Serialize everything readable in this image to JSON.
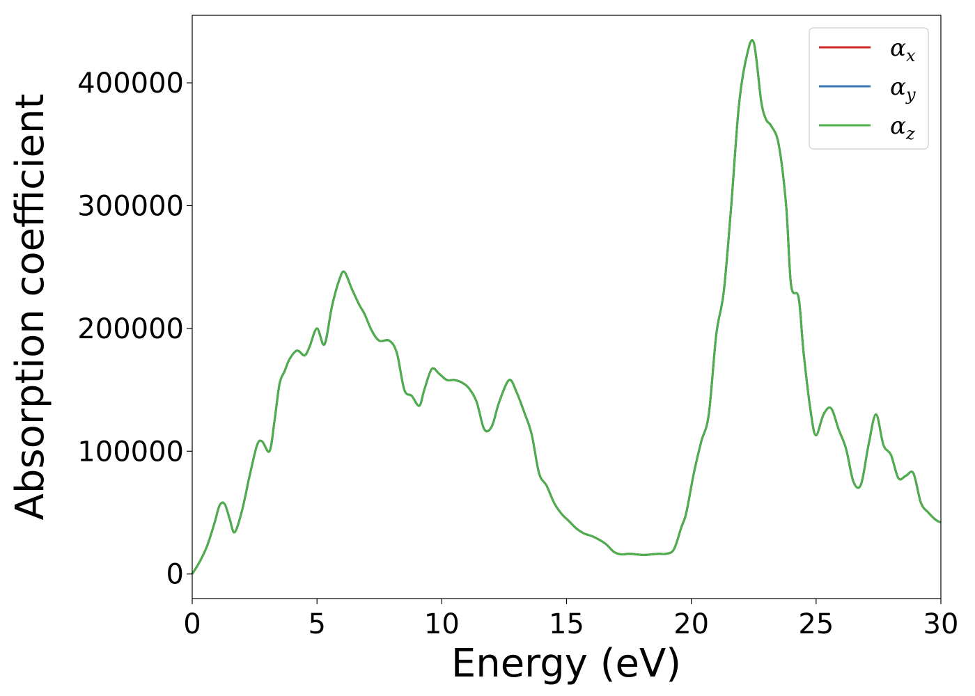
{
  "chart_data": {
    "type": "line",
    "xlabel": "Energy (eV)",
    "ylabel": "Absorption coefficient",
    "xlim": [
      0,
      30
    ],
    "ylim": [
      -20000,
      455000
    ],
    "xticks": [
      0,
      5,
      10,
      15,
      20,
      25,
      30
    ],
    "yticks": [
      0,
      100000,
      200000,
      300000,
      400000
    ],
    "grid": false,
    "legend_position": "upper right",
    "legend": [
      {
        "symbol": "α",
        "subscript": "x",
        "color": "#d62728"
      },
      {
        "symbol": "α",
        "subscript": "y",
        "color": "#3a78b5"
      },
      {
        "symbol": "α",
        "subscript": "z",
        "color": "#4daf4a"
      }
    ],
    "x": [
      0,
      0.3,
      0.6,
      0.9,
      1.1,
      1.3,
      1.5,
      1.7,
      2.0,
      2.3,
      2.6,
      2.8,
      3.1,
      3.3,
      3.5,
      3.7,
      3.9,
      4.2,
      4.5,
      4.7,
      5.0,
      5.3,
      5.6,
      5.9,
      6.1,
      6.4,
      6.7,
      6.9,
      7.2,
      7.5,
      7.9,
      8.2,
      8.5,
      8.8,
      9.1,
      9.3,
      9.6,
      9.9,
      10.2,
      10.5,
      10.8,
      11.1,
      11.4,
      11.7,
      12.0,
      12.3,
      12.7,
      13.0,
      13.3,
      13.6,
      13.9,
      14.2,
      14.5,
      14.8,
      15.1,
      15.4,
      15.7,
      16.0,
      16.3,
      16.6,
      16.9,
      17.2,
      17.5,
      17.8,
      18.1,
      18.4,
      18.7,
      19.0,
      19.3,
      19.6,
      19.8,
      20.1,
      20.4,
      20.7,
      21.0,
      21.3,
      21.6,
      21.9,
      22.2,
      22.5,
      22.8,
      23.0,
      23.2,
      23.5,
      23.8,
      24.0,
      24.3,
      24.5,
      24.8,
      25.0,
      25.3,
      25.6,
      25.9,
      26.2,
      26.5,
      26.8,
      27.1,
      27.4,
      27.7,
      28.0,
      28.3,
      28.6,
      28.9,
      29.2,
      29.5,
      29.8,
      30.0
    ],
    "series": [
      {
        "name": "α_x",
        "color": "#d62728",
        "values": [
          0,
          10000,
          23000,
          42000,
          56000,
          57000,
          45000,
          34000,
          52000,
          80000,
          105000,
          108000,
          100000,
          125000,
          155000,
          165000,
          175000,
          182000,
          178000,
          185000,
          200000,
          187000,
          218000,
          240000,
          246000,
          232000,
          219000,
          212000,
          198000,
          190000,
          190000,
          180000,
          150000,
          145000,
          137000,
          150000,
          167000,
          163000,
          158000,
          158000,
          156000,
          151000,
          140000,
          118000,
          120000,
          140000,
          158000,
          148000,
          132000,
          114000,
          82000,
          72000,
          58000,
          49000,
          43000,
          37000,
          33000,
          31000,
          28000,
          24000,
          18000,
          16000,
          16500,
          16000,
          15500,
          16000,
          16500,
          16500,
          20000,
          38000,
          50000,
          82000,
          108000,
          130000,
          195000,
          230000,
          300000,
          380000,
          420000,
          433000,
          385000,
          370000,
          365000,
          350000,
          300000,
          235000,
          225000,
          180000,
          130000,
          113000,
          130000,
          135000,
          118000,
          102000,
          75000,
          73000,
          105000,
          130000,
          105000,
          97000,
          78000,
          80000,
          82000,
          58000,
          50000,
          44000,
          42000
        ]
      },
      {
        "name": "α_y",
        "color": "#3a78b5",
        "values": [
          0,
          10000,
          23000,
          42000,
          56000,
          57000,
          45000,
          34000,
          52000,
          80000,
          105000,
          108000,
          100000,
          125000,
          155000,
          165000,
          175000,
          182000,
          178000,
          185000,
          200000,
          187000,
          218000,
          240000,
          246000,
          232000,
          219000,
          212000,
          198000,
          190000,
          190000,
          180000,
          150000,
          145000,
          137000,
          150000,
          167000,
          163000,
          158000,
          158000,
          156000,
          151000,
          140000,
          118000,
          120000,
          140000,
          158000,
          148000,
          132000,
          114000,
          82000,
          72000,
          58000,
          49000,
          43000,
          37000,
          33000,
          31000,
          28000,
          24000,
          18000,
          16000,
          16500,
          16000,
          15500,
          16000,
          16500,
          16500,
          20000,
          38000,
          50000,
          82000,
          108000,
          130000,
          195000,
          230000,
          300000,
          380000,
          420000,
          433000,
          385000,
          370000,
          365000,
          350000,
          300000,
          235000,
          225000,
          180000,
          130000,
          113000,
          130000,
          135000,
          118000,
          102000,
          75000,
          73000,
          105000,
          130000,
          105000,
          97000,
          78000,
          80000,
          82000,
          58000,
          50000,
          44000,
          42000
        ]
      },
      {
        "name": "α_z",
        "color": "#4daf4a",
        "values": [
          0,
          10000,
          23000,
          42000,
          56000,
          57000,
          45000,
          34000,
          52000,
          80000,
          105000,
          108000,
          100000,
          125000,
          155000,
          165000,
          175000,
          182000,
          178000,
          185000,
          200000,
          187000,
          218000,
          240000,
          246000,
          232000,
          219000,
          212000,
          198000,
          190000,
          190000,
          180000,
          150000,
          145000,
          137000,
          150000,
          167000,
          163000,
          158000,
          158000,
          156000,
          151000,
          140000,
          118000,
          120000,
          140000,
          158000,
          148000,
          132000,
          114000,
          82000,
          72000,
          58000,
          49000,
          43000,
          37000,
          33000,
          31000,
          28000,
          24000,
          18000,
          16000,
          16500,
          16000,
          15500,
          16000,
          16500,
          16500,
          20000,
          38000,
          50000,
          82000,
          108000,
          130000,
          195000,
          230000,
          300000,
          380000,
          420000,
          433000,
          385000,
          370000,
          365000,
          350000,
          300000,
          235000,
          225000,
          180000,
          130000,
          113000,
          130000,
          135000,
          118000,
          102000,
          75000,
          73000,
          105000,
          130000,
          105000,
          97000,
          78000,
          80000,
          82000,
          58000,
          50000,
          44000,
          42000
        ]
      }
    ]
  }
}
